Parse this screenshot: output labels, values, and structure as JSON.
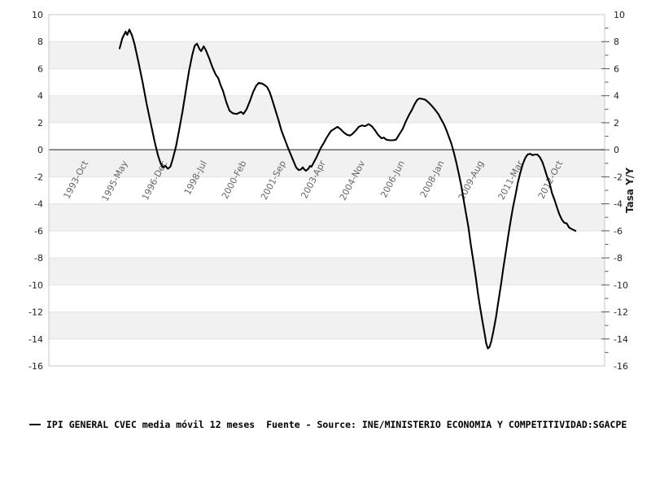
{
  "window": {
    "background": "#ffffff"
  },
  "legend": {
    "series_label": "IPI GENERAL CVEC media móvil 12 meses",
    "source_label": "Fuente - Source: INE/MINISTERIO ECONOMIA Y COMPETITIVIDAD:SGACPE"
  },
  "chart_data": {
    "type": "line",
    "title": "",
    "xlabel": "",
    "ylabel_right": "Tasa Y/Y",
    "legend_position": "bottom-left",
    "grid": "horizontal-bands-alternating",
    "ylim": [
      -16,
      10
    ],
    "yticks": [
      10,
      8,
      6,
      4,
      2,
      0,
      -2,
      -4,
      -6,
      -8,
      -10,
      -12,
      -14,
      -16
    ],
    "minor_ytick_step": 1,
    "x_unit": "months since 1993-Oct",
    "xlim": [
      -17,
      250
    ],
    "xticks": [
      {
        "m": 0,
        "label": "1993-Oct"
      },
      {
        "m": 19,
        "label": "1995-May"
      },
      {
        "m": 38,
        "label": "1996-Dec"
      },
      {
        "m": 57,
        "label": "1998-Jul"
      },
      {
        "m": 76,
        "label": "2000-Feb"
      },
      {
        "m": 95,
        "label": "2001-Sep"
      },
      {
        "m": 114,
        "label": "2003-Apr"
      },
      {
        "m": 133,
        "label": "2004-Nov"
      },
      {
        "m": 152,
        "label": "2006-Jun"
      },
      {
        "m": 171,
        "label": "2008-Jan"
      },
      {
        "m": 190,
        "label": "2009-Aug"
      },
      {
        "m": 209,
        "label": "2011-Mar"
      },
      {
        "m": 228,
        "label": "2012-Oct"
      }
    ],
    "colors": {
      "line": "#000000",
      "band": "#f1f1f1",
      "gridline": "#e3e3e3",
      "zero_line": "#7a7a7a",
      "border": "#c8c8c8",
      "tick": "#555555",
      "y_label": "#222222",
      "x_label": "#666666",
      "axis_title": "#222222"
    },
    "series": [
      {
        "name": "IPI GENERAL CVEC media móvil 12 meses",
        "points": [
          [
            17,
            7.5
          ],
          [
            18.3,
            8.25
          ],
          [
            19.9,
            8.75
          ],
          [
            20.7,
            8.5
          ],
          [
            21.7,
            8.9
          ],
          [
            23,
            8.45
          ],
          [
            24.2,
            7.8
          ],
          [
            26.1,
            6.45
          ],
          [
            28.1,
            4.95
          ],
          [
            30,
            3.4
          ],
          [
            32,
            1.95
          ],
          [
            33.9,
            0.55
          ],
          [
            35.5,
            -0.45
          ],
          [
            36.7,
            -1.0
          ],
          [
            37.8,
            -1.3
          ],
          [
            39,
            -1.2
          ],
          [
            40.2,
            -1.4
          ],
          [
            41.4,
            -1.25
          ],
          [
            42.5,
            -0.7
          ],
          [
            44.1,
            0.25
          ],
          [
            45.6,
            1.45
          ],
          [
            47.2,
            2.8
          ],
          [
            48.8,
            4.35
          ],
          [
            50.3,
            5.8
          ],
          [
            51.9,
            7.0
          ],
          [
            53.1,
            7.7
          ],
          [
            54.2,
            7.85
          ],
          [
            55.4,
            7.45
          ],
          [
            56.2,
            7.3
          ],
          [
            57.4,
            7.65
          ],
          [
            58.5,
            7.35
          ],
          [
            60.1,
            6.75
          ],
          [
            61.6,
            6.1
          ],
          [
            63.2,
            5.55
          ],
          [
            64.4,
            5.3
          ],
          [
            65.5,
            4.8
          ],
          [
            66.7,
            4.35
          ],
          [
            68.3,
            3.5
          ],
          [
            69.8,
            2.9
          ],
          [
            71.4,
            2.7
          ],
          [
            73.3,
            2.65
          ],
          [
            75.3,
            2.8
          ],
          [
            76.5,
            2.65
          ],
          [
            78,
            3.0
          ],
          [
            79.6,
            3.6
          ],
          [
            81.2,
            4.3
          ],
          [
            82.7,
            4.75
          ],
          [
            83.9,
            4.95
          ],
          [
            85.4,
            4.9
          ],
          [
            86.6,
            4.8
          ],
          [
            87.8,
            4.65
          ],
          [
            89,
            4.3
          ],
          [
            90.1,
            3.8
          ],
          [
            91.7,
            3.0
          ],
          [
            93.3,
            2.2
          ],
          [
            94.8,
            1.4
          ],
          [
            96.4,
            0.75
          ],
          [
            97.9,
            0.15
          ],
          [
            99.5,
            -0.45
          ],
          [
            100.7,
            -0.9
          ],
          [
            101.8,
            -1.3
          ],
          [
            103,
            -1.5
          ],
          [
            104.2,
            -1.45
          ],
          [
            105,
            -1.3
          ],
          [
            105.7,
            -1.45
          ],
          [
            106.5,
            -1.55
          ],
          [
            107.7,
            -1.4
          ],
          [
            108.5,
            -1.2
          ],
          [
            109.2,
            -1.25
          ],
          [
            110.4,
            -0.9
          ],
          [
            111.6,
            -0.55
          ],
          [
            112.8,
            -0.15
          ],
          [
            113.9,
            0.2
          ],
          [
            115.1,
            0.5
          ],
          [
            116.3,
            0.85
          ],
          [
            117.5,
            1.15
          ],
          [
            118.6,
            1.4
          ],
          [
            120.2,
            1.55
          ],
          [
            121.7,
            1.7
          ],
          [
            123.3,
            1.5
          ],
          [
            124.9,
            1.25
          ],
          [
            126.4,
            1.1
          ],
          [
            127.6,
            1.05
          ],
          [
            128.7,
            1.15
          ],
          [
            130.3,
            1.4
          ],
          [
            131.9,
            1.7
          ],
          [
            133.4,
            1.8
          ],
          [
            135,
            1.75
          ],
          [
            136.6,
            1.9
          ],
          [
            138.1,
            1.75
          ],
          [
            139.7,
            1.45
          ],
          [
            141.2,
            1.1
          ],
          [
            142.8,
            0.85
          ],
          [
            144,
            0.9
          ],
          [
            145.1,
            0.75
          ],
          [
            146.7,
            0.7
          ],
          [
            148.3,
            0.7
          ],
          [
            149.8,
            0.75
          ],
          [
            151.4,
            1.15
          ],
          [
            153,
            1.55
          ],
          [
            154.5,
            2.1
          ],
          [
            156.1,
            2.6
          ],
          [
            157.6,
            3.0
          ],
          [
            158.8,
            3.4
          ],
          [
            160,
            3.7
          ],
          [
            161.1,
            3.8
          ],
          [
            162.7,
            3.75
          ],
          [
            163.9,
            3.7
          ],
          [
            165.4,
            3.5
          ],
          [
            167,
            3.25
          ],
          [
            168.6,
            2.95
          ],
          [
            170.1,
            2.65
          ],
          [
            171.3,
            2.3
          ],
          [
            172.9,
            1.85
          ],
          [
            174,
            1.45
          ],
          [
            175.2,
            0.95
          ],
          [
            176.4,
            0.45
          ],
          [
            177.5,
            -0.15
          ],
          [
            178.7,
            -0.9
          ],
          [
            179.9,
            -1.75
          ],
          [
            181.1,
            -2.65
          ],
          [
            182.2,
            -3.65
          ],
          [
            183.4,
            -4.7
          ],
          [
            184.6,
            -5.75
          ],
          [
            185.7,
            -7.0
          ],
          [
            186.9,
            -8.2
          ],
          [
            188.1,
            -9.45
          ],
          [
            189.2,
            -10.7
          ],
          [
            190.4,
            -11.85
          ],
          [
            191.6,
            -12.95
          ],
          [
            192.4,
            -13.65
          ],
          [
            193.1,
            -14.3
          ],
          [
            193.9,
            -14.7
          ],
          [
            194.7,
            -14.6
          ],
          [
            195.5,
            -14.2
          ],
          [
            196.6,
            -13.4
          ],
          [
            197.8,
            -12.4
          ],
          [
            199,
            -11.2
          ],
          [
            200.2,
            -10.0
          ],
          [
            201.3,
            -8.8
          ],
          [
            202.5,
            -7.6
          ],
          [
            203.7,
            -6.35
          ],
          [
            204.8,
            -5.3
          ],
          [
            206,
            -4.25
          ],
          [
            207.2,
            -3.35
          ],
          [
            208.3,
            -2.45
          ],
          [
            209.5,
            -1.7
          ],
          [
            210.7,
            -1.05
          ],
          [
            211.9,
            -0.6
          ],
          [
            213,
            -0.35
          ],
          [
            214.2,
            -0.3
          ],
          [
            215.4,
            -0.4
          ],
          [
            216.5,
            -0.35
          ],
          [
            217.7,
            -0.35
          ],
          [
            218.9,
            -0.55
          ],
          [
            220.1,
            -0.9
          ],
          [
            221.2,
            -1.4
          ],
          [
            222.4,
            -2.0
          ],
          [
            223.6,
            -2.5
          ],
          [
            224.7,
            -3.2
          ],
          [
            225.9,
            -3.7
          ],
          [
            227.1,
            -4.25
          ],
          [
            228.2,
            -4.75
          ],
          [
            229.4,
            -5.15
          ],
          [
            230.6,
            -5.4
          ],
          [
            231.8,
            -5.45
          ],
          [
            232.9,
            -5.75
          ],
          [
            234.1,
            -5.85
          ],
          [
            235.3,
            -5.95
          ],
          [
            236,
            -6.0
          ]
        ]
      }
    ]
  }
}
